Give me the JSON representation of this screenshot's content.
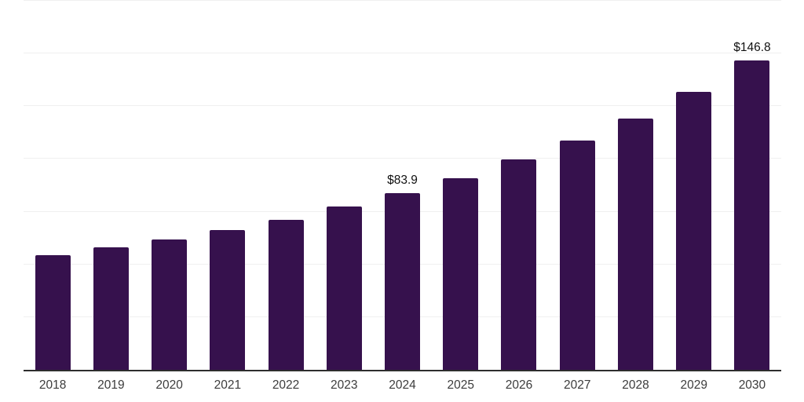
{
  "chart_data": {
    "type": "bar",
    "title": "",
    "xlabel": "",
    "ylabel": "",
    "categories": [
      "2018",
      "2019",
      "2020",
      "2021",
      "2022",
      "2023",
      "2024",
      "2025",
      "2026",
      "2027",
      "2028",
      "2029",
      "2030"
    ],
    "values": [
      54.4,
      58.2,
      61.9,
      66.4,
      71.1,
      77.3,
      83.9,
      91.0,
      99.7,
      108.6,
      119.3,
      131.9,
      146.8
    ],
    "data_labels": [
      {
        "category": "2024",
        "text": "$83.9"
      },
      {
        "category": "2030",
        "text": "$146.8"
      }
    ],
    "ylim": [
      0,
      175
    ],
    "gridline_values": [
      25,
      50,
      75,
      100,
      125,
      150,
      175
    ],
    "grid": "horizontal",
    "legend": "none",
    "colors": {
      "bar": "#36114d",
      "gridline": "#f0f0f0",
      "axis_line": "#2e2e2e",
      "tick_label": "#3c3c3c",
      "data_label": "#111111",
      "background": "#ffffff"
    }
  }
}
